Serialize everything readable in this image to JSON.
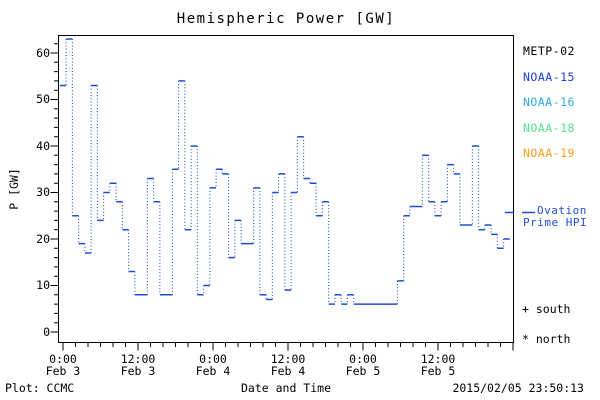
{
  "title": "Hemispheric Power [GW]",
  "footer": {
    "plot_credit": "Plot: CCMC",
    "xlabel": "Date and Time",
    "timestamp": "2015/02/05 23:50:13"
  },
  "legend": {
    "satellites": [
      {
        "label": "METP-02",
        "color": "#000000"
      },
      {
        "label": "NOAA-15",
        "color": "#1a3cee"
      },
      {
        "label": "NOAA-16",
        "color": "#2aabee"
      },
      {
        "label": "NOAA-18",
        "color": "#55e388"
      },
      {
        "label": "NOAA-19",
        "color": "#ff9d1c"
      }
    ],
    "series_label_line1": "Ovation",
    "series_label_line2": "Prime HPI",
    "south_marker": "+ south",
    "north_marker": "* north"
  },
  "chart_data": {
    "type": "line",
    "style": "histogram-step: solid horizontal level dashes joined by dotted vertical connectors",
    "title": "Hemispheric Power [GW]",
    "xlabel": "Date and Time",
    "ylabel": "P [GW]",
    "ylim": [
      0,
      65
    ],
    "xlim_hours": [
      0,
      72
    ],
    "grid": false,
    "legend_position": "right-outside",
    "x_start": "Feb 3 0:00",
    "x_step_hours": 1,
    "y_ticks": [
      0,
      10,
      20,
      30,
      40,
      50,
      60
    ],
    "y_minor_step": 2,
    "x_minor_step_hours": 2,
    "x_major_ticks": [
      {
        "hour": 0,
        "time": "0:00",
        "date": "Feb 3"
      },
      {
        "hour": 12,
        "time": "12:00",
        "date": "Feb 3"
      },
      {
        "hour": 24,
        "time": "0:00",
        "date": "Feb 4"
      },
      {
        "hour": 36,
        "time": "12:00",
        "date": "Feb 4"
      },
      {
        "hour": 48,
        "time": "0:00",
        "date": "Feb 5"
      },
      {
        "hour": 60,
        "time": "12:00",
        "date": "Feb 5"
      }
    ],
    "series": [
      {
        "name": "Ovation Prime HPI",
        "color": "#1e4fd2",
        "hourly_values_GW": [
          53,
          63,
          25,
          19,
          17,
          53,
          24,
          30,
          32,
          28,
          22,
          13,
          8,
          8,
          33,
          28,
          8,
          8,
          35,
          54,
          22,
          40,
          8,
          10,
          31,
          35,
          34,
          16,
          24,
          19,
          19,
          31,
          8,
          7,
          30,
          34,
          9,
          30,
          42,
          33,
          32,
          25,
          28,
          6,
          8,
          6,
          8,
          6,
          6,
          6,
          6,
          6,
          6,
          6,
          11,
          25,
          27,
          27,
          38,
          28,
          25,
          28,
          36,
          34,
          23,
          23,
          40,
          22,
          23,
          21,
          18,
          20
        ]
      }
    ]
  }
}
